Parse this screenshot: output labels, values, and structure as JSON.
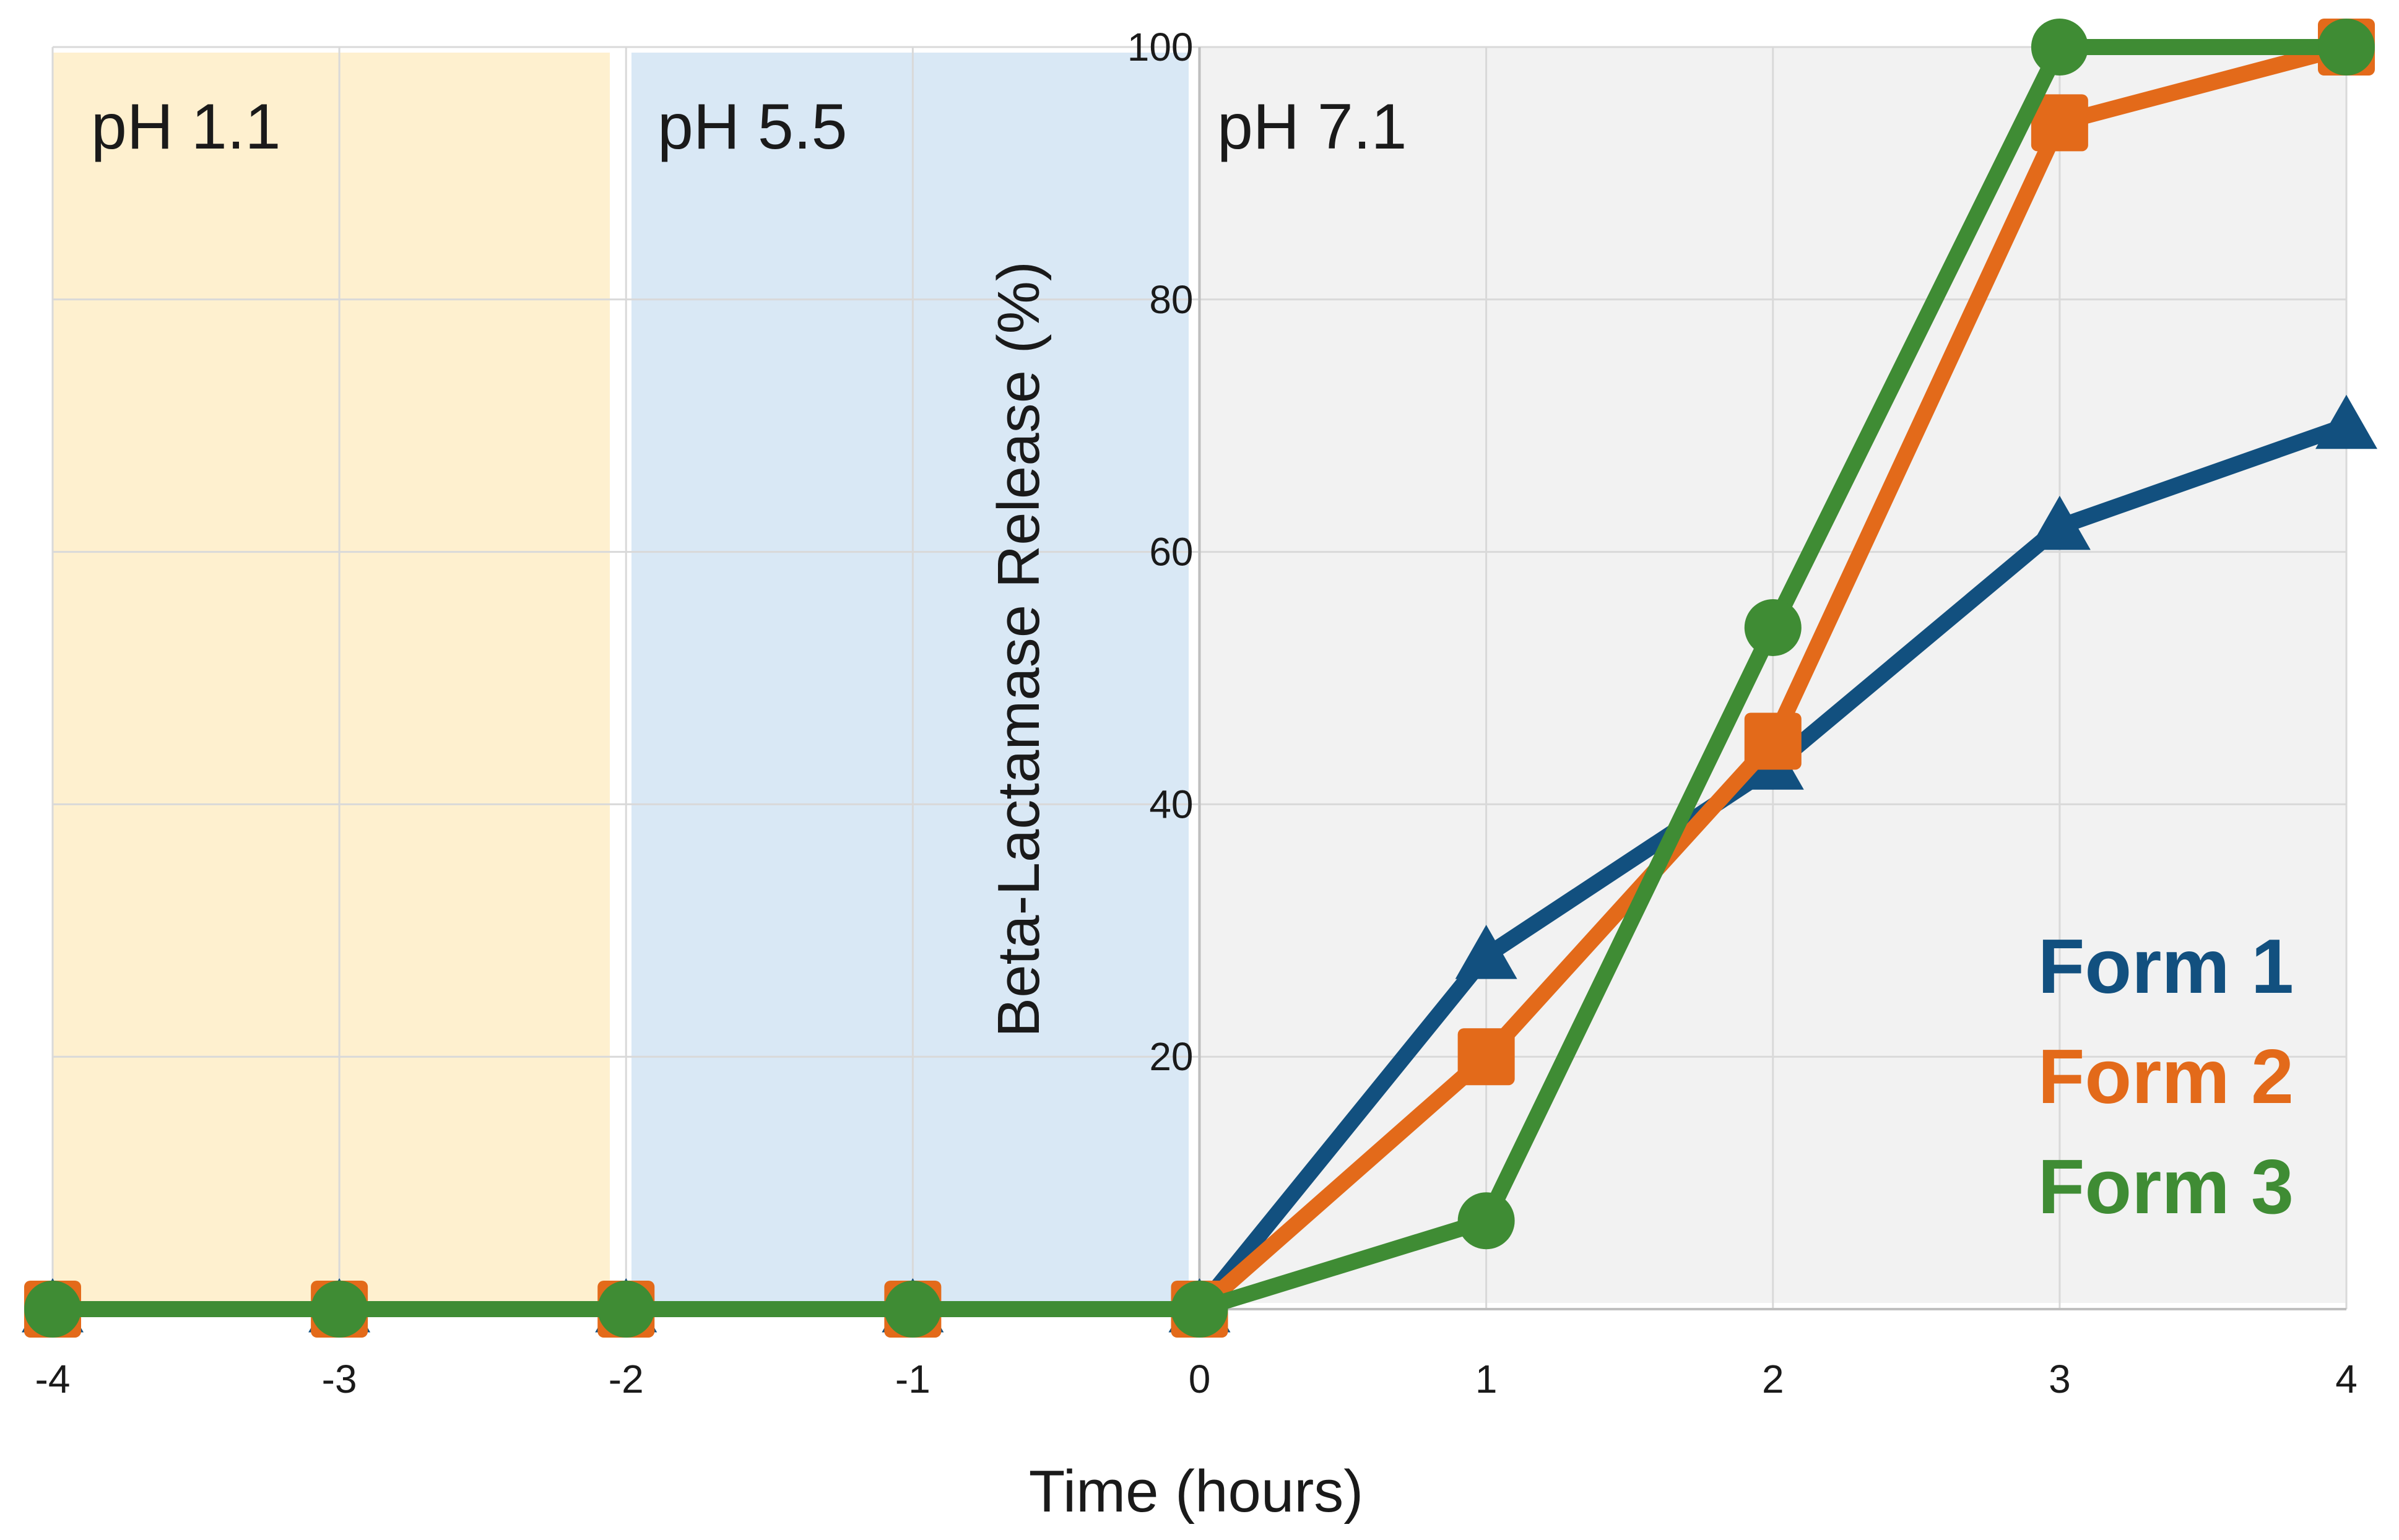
{
  "chart_data": {
    "type": "line",
    "title": "",
    "xlabel": "Time (hours)",
    "ylabel": "Beta-Lactamase Release (%)",
    "xlim": [
      -4,
      4
    ],
    "ylim": [
      0,
      100
    ],
    "xticks": [
      -4,
      -3,
      -2,
      -1,
      0,
      1,
      2,
      3,
      4
    ],
    "yticks": [
      0,
      20,
      40,
      60,
      80,
      100
    ],
    "grid": true,
    "legend_position": "bottom-right",
    "regions": [
      {
        "label": "pH 1.1",
        "x_from": -4,
        "x_to": -2,
        "color": "#fef0cf"
      },
      {
        "label": "pH 5.5",
        "x_from": -2,
        "x_to": 0,
        "color": "#d9e8f5"
      },
      {
        "label": "pH 7.1",
        "x_from": 0,
        "x_to": 4,
        "color": "#f2f2f2"
      }
    ],
    "x": [
      -4,
      -3,
      -2,
      -1,
      0,
      1,
      2,
      3,
      4
    ],
    "series": [
      {
        "name": "Form 1",
        "color": "#12507f",
        "marker": "triangle",
        "values": [
          0,
          0,
          0,
          0,
          0,
          28,
          43,
          62,
          70
        ]
      },
      {
        "name": "Form 2",
        "color": "#e36a1a",
        "marker": "square",
        "values": [
          0,
          0,
          0,
          0,
          0,
          20,
          45,
          94,
          100
        ]
      },
      {
        "name": "Form 3",
        "color": "#3f8c34",
        "marker": "circle",
        "values": [
          0,
          0,
          0,
          0,
          0,
          7,
          54,
          100,
          100
        ]
      }
    ]
  }
}
